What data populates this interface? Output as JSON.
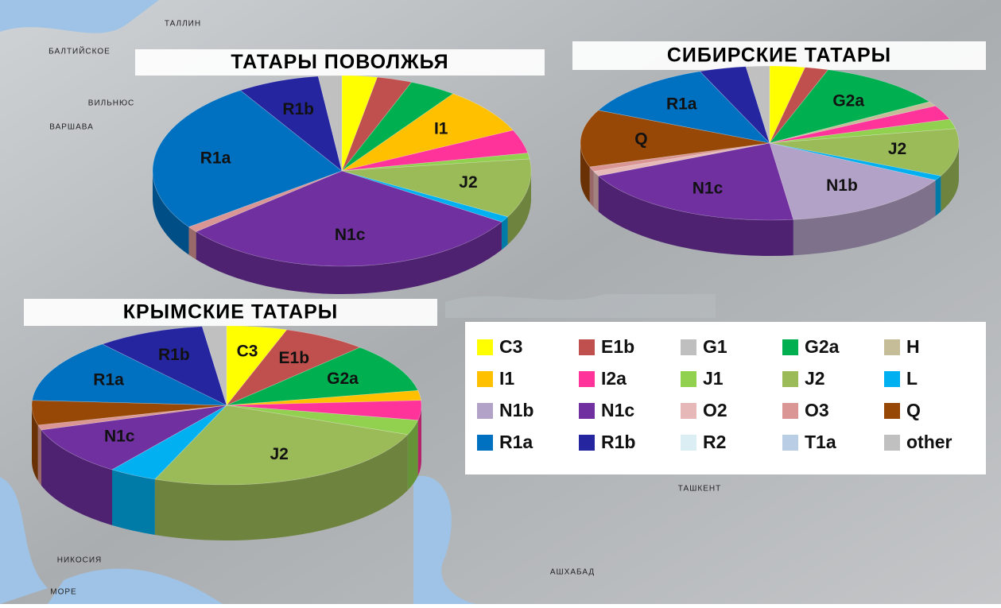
{
  "chart_data": [
    {
      "type": "pie",
      "title": "ТАТАРЫ ПОВОЛЖЬЯ",
      "categories": [
        "C3",
        "E1b",
        "G2a",
        "I1",
        "I2a",
        "J1",
        "J2",
        "L",
        "N1c",
        "O3",
        "R1a",
        "R1b",
        "other"
      ],
      "values": [
        3,
        3,
        4,
        8,
        4,
        1,
        10,
        1,
        30,
        1,
        26,
        7,
        2
      ],
      "slice_labels": [
        null,
        null,
        null,
        "I1",
        null,
        null,
        "J2",
        null,
        "N1c",
        null,
        "R1a",
        "R1b",
        null
      ]
    },
    {
      "type": "pie",
      "title": "СИБИРСКИЕ ТАТАРЫ",
      "categories": [
        "C3",
        "E1b",
        "G2a",
        "H",
        "I2a",
        "J1",
        "J2",
        "L",
        "N1b",
        "N1c",
        "O2",
        "O3",
        "Q",
        "R1a",
        "R1b",
        "other"
      ],
      "values": [
        3,
        2,
        11,
        1,
        3,
        2,
        10,
        1,
        15,
        20,
        1,
        1,
        12,
        12,
        4,
        2
      ],
      "slice_labels": [
        null,
        null,
        "G2a",
        null,
        null,
        null,
        "J2",
        null,
        "N1b",
        "N1c",
        null,
        null,
        "Q",
        "R1a",
        null,
        null
      ]
    },
    {
      "type": "pie",
      "title": "КРЫМСКИЕ ТАТАРЫ",
      "categories": [
        "C3",
        "E1b",
        "G2a",
        "I1",
        "I2a",
        "J1",
        "J2",
        "L",
        "N1c",
        "O3",
        "Q",
        "R1a",
        "R1b",
        "other"
      ],
      "values": [
        5,
        7,
        10,
        2,
        4,
        3,
        25,
        4,
        10,
        1,
        5,
        13,
        9,
        2
      ],
      "slice_labels": [
        "C3",
        "E1b",
        "G2a",
        null,
        null,
        null,
        "J2",
        null,
        "N1c",
        null,
        null,
        "R1a",
        "R1b",
        null
      ]
    }
  ],
  "legend": {
    "items": [
      {
        "name": "C3",
        "color": "#ffff00"
      },
      {
        "name": "E1b",
        "color": "#c0504d"
      },
      {
        "name": "G1",
        "color": "#bfbfbf"
      },
      {
        "name": "G2a",
        "color": "#00b050"
      },
      {
        "name": "H",
        "color": "#c4bd97"
      },
      {
        "name": "I1",
        "color": "#ffc000"
      },
      {
        "name": "I2a",
        "color": "#ff3399"
      },
      {
        "name": "J1",
        "color": "#92d050"
      },
      {
        "name": "J2",
        "color": "#9bbb59"
      },
      {
        "name": "L",
        "color": "#00b0f0"
      },
      {
        "name": "N1b",
        "color": "#b3a2c7"
      },
      {
        "name": "N1c",
        "color": "#7030a0"
      },
      {
        "name": "O2",
        "color": "#e6b9b8"
      },
      {
        "name": "O3",
        "color": "#d99694"
      },
      {
        "name": "Q",
        "color": "#984806"
      },
      {
        "name": "R1a",
        "color": "#0070c0"
      },
      {
        "name": "R1b",
        "color": "#2525a0"
      },
      {
        "name": "R2",
        "color": "#dbeef4"
      },
      {
        "name": "T1a",
        "color": "#b9cde5"
      },
      {
        "name": "other",
        "color": "#c0c0c0"
      }
    ]
  },
  "map_labels": [
    "ТАЛЛИН",
    "БАЛТИЙСКОЕ",
    "ВИЛЬНЮС",
    "ВАРШАВА",
    "НИКОСИЯ",
    "МОРЕ",
    "ТАШКЕНТ",
    "АШХАБАД"
  ]
}
